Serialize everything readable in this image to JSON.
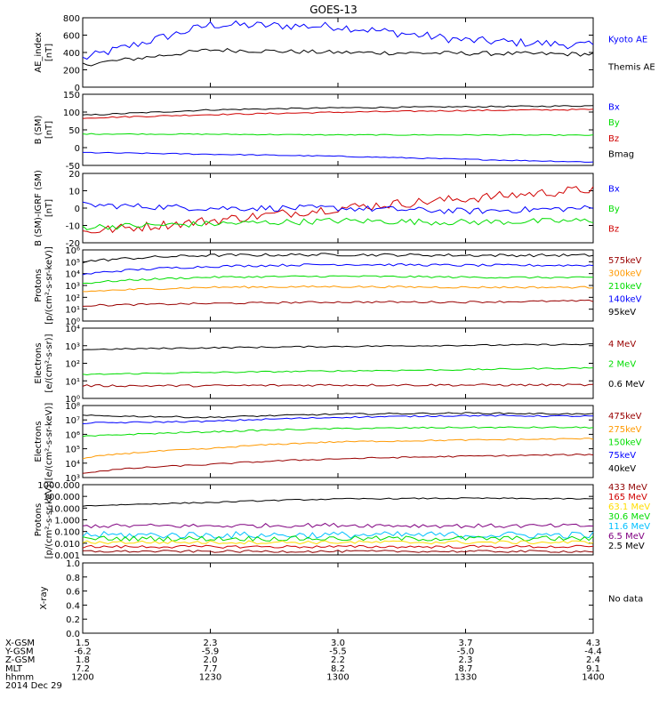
{
  "title": "GOES-13",
  "colors": {
    "black": "#000000",
    "blue": "#0000ff",
    "red": "#d00000",
    "green": "#00dd00",
    "orange": "#ff9900",
    "darkred": "#990000",
    "cyan": "#00c0ff",
    "maroon": "#900000",
    "purple": "#800080"
  },
  "panels": [
    {
      "id": "ae",
      "ylabel": [
        "AE_index",
        "[nT]"
      ],
      "scale": "linear",
      "ylim": [
        0,
        800
      ],
      "ticks": [
        "800",
        "600",
        "400",
        "200",
        "0"
      ],
      "legend": [
        {
          "text": "Kyoto AE",
          "color": "#0000ff"
        },
        {
          "text": "Themis AE",
          "color": "#000000"
        }
      ]
    },
    {
      "id": "bsm",
      "ylabel": [
        "B (SM)",
        "[nT]"
      ],
      "scale": "linear",
      "ylim": [
        -60,
        150
      ],
      "ticks": [
        "150",
        "100",
        "50",
        "0",
        "-50"
      ],
      "legend": [
        {
          "text": "Bx",
          "color": "#0000ff"
        },
        {
          "text": "By",
          "color": "#00dd00"
        },
        {
          "text": "Bz",
          "color": "#d00000"
        },
        {
          "text": "Bmag",
          "color": "#000000"
        }
      ]
    },
    {
      "id": "bigrf",
      "ylabel": [
        "B (SM)-IGRF (SM)",
        "[nT]"
      ],
      "scale": "linear",
      "ylim": [
        -22,
        22
      ],
      "ticks": [
        "20",
        "10",
        "0",
        "-10",
        "-20"
      ],
      "legend": [
        {
          "text": "Bx",
          "color": "#0000ff"
        },
        {
          "text": "By",
          "color": "#00dd00"
        },
        {
          "text": "Bz",
          "color": "#d00000"
        }
      ]
    },
    {
      "id": "protons1",
      "ylabel": [
        "Protons",
        "[p/(cm²-s-sr-keV)]"
      ],
      "scale": "log",
      "ylim": [
        1,
        1000000
      ],
      "ticks": [
        "10⁶",
        "10⁵",
        "10⁴",
        "10³",
        "10²",
        "10¹",
        "10⁰"
      ],
      "legend": [
        {
          "text": "575keV",
          "color": "#990000"
        },
        {
          "text": "300keV",
          "color": "#ff9900"
        },
        {
          "text": "210keV",
          "color": "#00dd00"
        },
        {
          "text": "140keV",
          "color": "#0000ff"
        },
        {
          "text": "95keV",
          "color": "#000000"
        }
      ]
    },
    {
      "id": "electrons1",
      "ylabel": [
        "Electrons",
        "[e/(cm²-s-sr)]"
      ],
      "scale": "log",
      "ylim": [
        1,
        100000
      ],
      "ticks": [
        "10⁴",
        "10³",
        "10²",
        "10¹",
        "10⁰"
      ],
      "legend": [
        {
          "text": "4 MeV",
          "color": "#990000"
        },
        {
          "text": "2 MeV",
          "color": "#00dd00"
        },
        {
          "text": "0.6 MeV",
          "color": "#000000"
        }
      ]
    },
    {
      "id": "electrons2",
      "ylabel": [
        "Electrons",
        "[e/(cm²-s-sr-keV)]"
      ],
      "scale": "log",
      "ylim": [
        1000,
        100000000
      ],
      "ticks": [
        "10⁸",
        "10⁷",
        "10⁶",
        "10⁵",
        "10⁴",
        "10³"
      ],
      "legend": [
        {
          "text": "475keV",
          "color": "#990000"
        },
        {
          "text": "275keV",
          "color": "#ff9900"
        },
        {
          "text": "150keV",
          "color": "#00dd00"
        },
        {
          "text": "75keV",
          "color": "#0000ff"
        },
        {
          "text": "40keV",
          "color": "#000000"
        }
      ]
    },
    {
      "id": "protons2",
      "ylabel": [
        "Protons",
        "[p/(cm²-s-sr-keV)]"
      ],
      "scale": "log",
      "ylim": [
        0.001,
        1000
      ],
      "ticks": [
        "1000.000",
        "100.000",
        "10.000",
        "1.000",
        "0.100",
        "0.010",
        "0.001"
      ],
      "legend": [
        {
          "text": "433 MeV",
          "color": "#900000"
        },
        {
          "text": "165 MeV",
          "color": "#d00000"
        },
        {
          "text": "63.1 MeV",
          "color": "#ffdd00"
        },
        {
          "text": "30.6 MeV",
          "color": "#00dd00"
        },
        {
          "text": "11.6 MeV",
          "color": "#00c0ff"
        },
        {
          "text": "6.5 MeV",
          "color": "#800080"
        },
        {
          "text": "2.5 MeV",
          "color": "#000000"
        }
      ]
    },
    {
      "id": "xray",
      "ylabel": [
        "X-ray"
      ],
      "scale": "linear",
      "ylim": [
        0,
        1
      ],
      "ticks": [
        "1.0",
        "0.8",
        "0.6",
        "0.4",
        "0.2",
        "0.0"
      ],
      "legend": [
        {
          "text": "No data",
          "color": "#000000"
        }
      ]
    }
  ],
  "footer": {
    "rows": [
      "X-GSM",
      "Y-GSM",
      "Z-GSM",
      "MLT",
      "hhmm"
    ],
    "columns": [
      [
        "1.5",
        "-6.2",
        "1.8",
        "7.2",
        "1200"
      ],
      [
        "2.3",
        "-5.9",
        "2.0",
        "7.7",
        "1230"
      ],
      [
        "3.0",
        "-5.5",
        "2.2",
        "8.2",
        "1300"
      ],
      [
        "3.7",
        "-5.0",
        "2.3",
        "8.7",
        "1330"
      ],
      [
        "4.3",
        "-4.4",
        "2.4",
        "9.1",
        "1400"
      ]
    ],
    "date": "2014 Dec 29"
  },
  "chart_data": {
    "type": "line",
    "x_label": "hhmm",
    "x": [
      1200,
      1230,
      1300,
      1330,
      1400
    ],
    "series": [
      {
        "name": "Kyoto AE",
        "panel": "ae",
        "color": "#0000ff",
        "values": [
          330,
          720,
          700,
          540,
          480
        ],
        "jitter": 50
      },
      {
        "name": "Themis AE",
        "panel": "ae",
        "color": "#000000",
        "values": [
          260,
          430,
          400,
          390,
          380
        ],
        "jitter": 25
      },
      {
        "name": "Bmag",
        "panel": "bsm",
        "color": "#000000",
        "values": [
          88,
          104,
          110,
          113,
          116
        ],
        "jitter": 2
      },
      {
        "name": "Bz",
        "panel": "bsm",
        "color": "#d00000",
        "values": [
          80,
          90,
          97,
          102,
          105
        ],
        "jitter": 2
      },
      {
        "name": "By",
        "panel": "bsm",
        "color": "#00dd00",
        "values": [
          33,
          32,
          30,
          30,
          29
        ],
        "jitter": 1.5
      },
      {
        "name": "Bx",
        "panel": "bsm",
        "color": "#0000ff",
        "values": [
          -22,
          -27,
          -33,
          -42,
          -50
        ],
        "jitter": 1.5
      },
      {
        "name": "Bz",
        "panel": "bigrf",
        "color": "#d00000",
        "values": [
          -15,
          -8,
          0,
          6,
          12
        ],
        "jitter": 3
      },
      {
        "name": "Bx",
        "panel": "bigrf",
        "color": "#0000ff",
        "values": [
          2,
          0,
          0,
          -2,
          0
        ],
        "jitter": 2
      },
      {
        "name": "By",
        "panel": "bigrf",
        "color": "#00dd00",
        "values": [
          -12,
          -10,
          -8,
          -9,
          -8
        ],
        "jitter": 2
      },
      {
        "name": "95keV",
        "panel": "protons1",
        "color": "#000000",
        "values": [
          100000,
          350000,
          400000,
          350000,
          350000
        ],
        "jitter": 0.12
      },
      {
        "name": "140keV",
        "panel": "protons1",
        "color": "#0000ff",
        "values": [
          8000,
          40000,
          60000,
          50000,
          50000
        ],
        "jitter": 0.1
      },
      {
        "name": "210keV",
        "panel": "protons1",
        "color": "#00dd00",
        "values": [
          1500,
          5000,
          6000,
          5000,
          4500
        ],
        "jitter": 0.08
      },
      {
        "name": "300keV",
        "panel": "protons1",
        "color": "#ff9900",
        "values": [
          300,
          700,
          800,
          700,
          700
        ],
        "jitter": 0.08
      },
      {
        "name": "575keV",
        "panel": "protons1",
        "color": "#990000",
        "values": [
          20,
          30,
          40,
          40,
          50
        ],
        "jitter": 0.08
      },
      {
        "name": "0.6 MeV",
        "panel": "electrons1",
        "color": "#000000",
        "values": [
          3000,
          4000,
          5000,
          6000,
          7000
        ],
        "jitter": 0.05
      },
      {
        "name": "2 MeV",
        "panel": "electrons1",
        "color": "#00dd00",
        "values": [
          50,
          70,
          90,
          110,
          150
        ],
        "jitter": 0.05
      },
      {
        "name": "4 MeV",
        "panel": "electrons1",
        "color": "#990000",
        "values": [
          8,
          8,
          9,
          9,
          9
        ],
        "jitter": 0.08
      },
      {
        "name": "40keV",
        "panel": "electrons2",
        "color": "#000000",
        "values": [
          20000000,
          15000000,
          25000000,
          30000000,
          25000000
        ],
        "jitter": 0.05
      },
      {
        "name": "75keV",
        "panel": "electrons2",
        "color": "#0000ff",
        "values": [
          6000000,
          8000000,
          15000000,
          20000000,
          18000000
        ],
        "jitter": 0.05
      },
      {
        "name": "150keV",
        "panel": "electrons2",
        "color": "#00dd00",
        "values": [
          700000,
          1500000,
          2500000,
          3000000,
          3000000
        ],
        "jitter": 0.05
      },
      {
        "name": "275keV",
        "panel": "electrons2",
        "color": "#ff9900",
        "values": [
          20000,
          100000,
          300000,
          400000,
          500000
        ],
        "jitter": 0.05
      },
      {
        "name": "475keV",
        "panel": "electrons2",
        "color": "#990000",
        "values": [
          2000,
          8000,
          20000,
          30000,
          40000
        ],
        "jitter": 0.05
      },
      {
        "name": "2.5 MeV",
        "panel": "protons2",
        "color": "#000000",
        "values": [
          15,
          30,
          60,
          70,
          60
        ],
        "jitter": 0.05
      },
      {
        "name": "6.5 MeV",
        "panel": "protons2",
        "color": "#800080",
        "values": [
          0.3,
          0.3,
          0.35,
          0.3,
          0.3
        ],
        "jitter": 0.18
      },
      {
        "name": "11.6 MeV",
        "panel": "protons2",
        "color": "#00c0ff",
        "values": [
          0.05,
          0.05,
          0.05,
          0.05,
          0.05
        ],
        "jitter": 0.3
      },
      {
        "name": "30.6 MeV",
        "panel": "protons2",
        "color": "#00dd00",
        "values": [
          0.025,
          0.025,
          0.025,
          0.025,
          0.025
        ],
        "jitter": 0.22
      },
      {
        "name": "63.1 MeV",
        "panel": "protons2",
        "color": "#ffdd00",
        "values": [
          0.012,
          0.012,
          0.012,
          0.012,
          0.012
        ],
        "jitter": 0.15
      },
      {
        "name": "165 MeV",
        "panel": "protons2",
        "color": "#d00000",
        "values": [
          0.005,
          0.005,
          0.005,
          0.005,
          0.005
        ],
        "jitter": 0.12
      },
      {
        "name": "433 MeV",
        "panel": "protons2",
        "color": "#900000",
        "values": [
          0.002,
          0.002,
          0.002,
          0.002,
          0.002
        ],
        "jitter": 0.1
      }
    ]
  }
}
